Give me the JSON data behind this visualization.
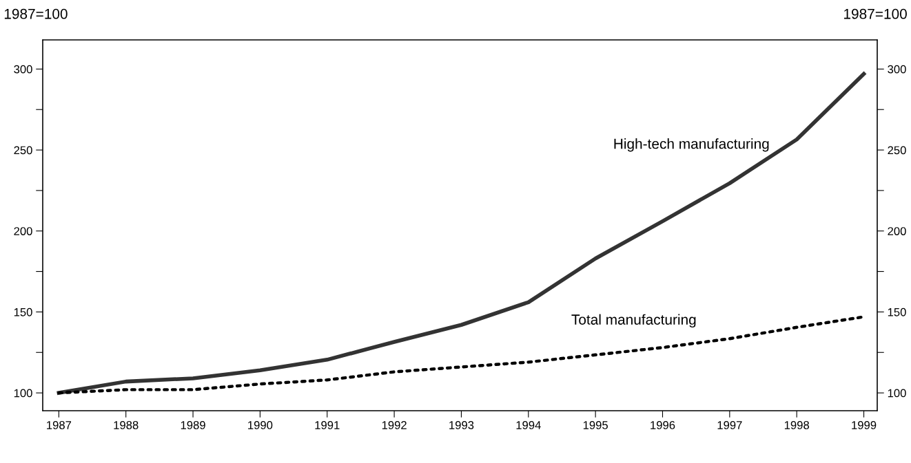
{
  "chart_data": {
    "type": "line",
    "ylabel": "1987=100",
    "y2label": "1987=100",
    "x": [
      1987,
      1988,
      1989,
      1990,
      1991,
      1992,
      1993,
      1994,
      1995,
      1996,
      1997,
      1998,
      1999
    ],
    "xlim": [
      1986.76,
      1999.2
    ],
    "xticks": [
      1987,
      1988,
      1989,
      1990,
      1991,
      1992,
      1993,
      1994,
      1995,
      1996,
      1997,
      1998,
      1999
    ],
    "ylim": [
      89,
      318
    ],
    "yticks": [
      100,
      {
        "value": 125,
        "label": null
      },
      150,
      {
        "value": 175,
        "label": null
      },
      200,
      {
        "value": 225,
        "label": null
      },
      250,
      {
        "value": 275,
        "label": null
      },
      300
    ],
    "y2lim": [
      89,
      318
    ],
    "y2ticks": [
      100,
      {
        "value": 125,
        "label": null
      },
      150,
      {
        "value": 175,
        "label": null
      },
      200,
      {
        "value": 225,
        "label": null
      },
      250,
      {
        "value": 275,
        "label": null
      },
      300
    ],
    "grid": false,
    "legend": false,
    "marker": "none",
    "series": [
      {
        "name": "High-tech manufacturing",
        "color": "#333333",
        "line_style": "solid",
        "values": [
          100,
          107,
          109,
          114,
          120.5,
          131.5,
          142,
          156,
          183,
          206,
          229.5,
          256.5,
          297
        ]
      },
      {
        "name": "Total manufacturing",
        "color": "#000000",
        "line_style": "dotted",
        "values": [
          100,
          102,
          102,
          105.5,
          108,
          113,
          116,
          119,
          123.5,
          128,
          133.5,
          140.5,
          147
        ]
      }
    ]
  }
}
